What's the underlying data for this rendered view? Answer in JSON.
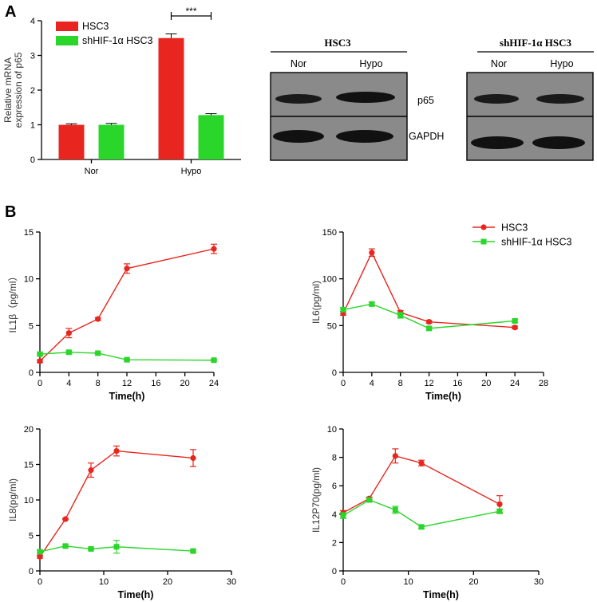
{
  "panel_labels": {
    "a": "A",
    "b": "B"
  },
  "colors": {
    "hsc3": "#e8261f",
    "shhif": "#2bd62b",
    "axis": "#000000",
    "blot_bg": "#8a8a8a"
  },
  "western_blot": {
    "left": {
      "title": "HSC3",
      "lanes": [
        "Nor",
        "Hypo"
      ]
    },
    "right": {
      "title": "shHIF-1α HSC3",
      "lanes": [
        "Nor",
        "Hypo"
      ]
    },
    "bands": [
      "p65",
      "GAPDH"
    ]
  },
  "chart_data": [
    {
      "id": "bar",
      "type": "bar",
      "categories": [
        "Nor",
        "Hypo"
      ],
      "ylabel": "Relative mRNA\nexpression of p65",
      "ylim": [
        0,
        4
      ],
      "yticks": [
        0,
        1,
        2,
        3,
        4
      ],
      "series": [
        {
          "name": "HSC3",
          "values": [
            1.0,
            3.5
          ],
          "errors": [
            0.03,
            0.12
          ]
        },
        {
          "name": "shHIF-1α  HSC3",
          "values": [
            1.0,
            1.28
          ],
          "errors": [
            0.04,
            0.04
          ]
        }
      ],
      "annotation": "***"
    },
    {
      "id": "il1b",
      "type": "line",
      "xlabel": "Time(h)",
      "ylabel": "IL1β（pg/ml）",
      "xlim": [
        0,
        24
      ],
      "xticks": [
        0,
        4,
        8,
        12,
        16,
        20,
        24
      ],
      "ylim": [
        0,
        15
      ],
      "yticks": [
        0,
        5,
        10,
        15
      ],
      "series": [
        {
          "name": "HSC3",
          "x": [
            0,
            4,
            8,
            12,
            24
          ],
          "y": [
            1.2,
            4.2,
            5.7,
            11.1,
            13.2
          ],
          "err": [
            0.15,
            0.5,
            0.15,
            0.5,
            0.5
          ]
        },
        {
          "name": "shHIF-1α  HSC3",
          "x": [
            0,
            4,
            8,
            12,
            24
          ],
          "y": [
            1.95,
            2.15,
            2.05,
            1.35,
            1.3
          ],
          "err": [
            0.1,
            0.15,
            0.1,
            0.1,
            0.1
          ]
        }
      ]
    },
    {
      "id": "il6",
      "type": "line",
      "xlabel": "Time(h)",
      "ylabel": "IL6(pg/ml)",
      "xlim": [
        0,
        28
      ],
      "xticks": [
        0,
        4,
        8,
        12,
        16,
        20,
        24,
        28
      ],
      "ylim": [
        0,
        150
      ],
      "yticks": [
        0,
        50,
        100,
        150
      ],
      "series": [
        {
          "name": "HSC3",
          "x": [
            0,
            4,
            8,
            12,
            24
          ],
          "y": [
            63,
            128,
            64,
            54,
            48
          ],
          "err": [
            2,
            4,
            2,
            1.5,
            1.5
          ]
        },
        {
          "name": "shHIF-1α  HSC3",
          "x": [
            0,
            4,
            8,
            12,
            24
          ],
          "y": [
            67,
            73,
            61,
            47,
            55
          ],
          "err": [
            2,
            2,
            3,
            1.5,
            1.5
          ]
        }
      ],
      "legend": {
        "position": "top-right",
        "items": [
          "HSC3",
          "shHIF-1α  HSC3"
        ]
      }
    },
    {
      "id": "il8",
      "type": "line",
      "xlabel": "Time(h)",
      "ylabel": "IL8(pg/ml)",
      "xlim": [
        0,
        30
      ],
      "xticks": [
        0,
        10,
        20,
        30
      ],
      "ylim": [
        0,
        20
      ],
      "yticks": [
        0,
        5,
        10,
        15,
        20
      ],
      "series": [
        {
          "name": "HSC3",
          "x": [
            0,
            4,
            8,
            12,
            24
          ],
          "y": [
            2.0,
            7.3,
            14.2,
            16.9,
            15.9
          ],
          "err": [
            0.2,
            0.1,
            1.0,
            0.7,
            1.2
          ]
        },
        {
          "name": "shHIF-1α  HSC3",
          "x": [
            0,
            4,
            8,
            12,
            24
          ],
          "y": [
            2.7,
            3.5,
            3.1,
            3.4,
            2.8
          ],
          "err": [
            0.2,
            0.15,
            0.15,
            0.9,
            0.15
          ]
        }
      ]
    },
    {
      "id": "il12",
      "type": "line",
      "xlabel": "Time(h)",
      "ylabel": "IL12P70(pg/ml)",
      "xlim": [
        0,
        30
      ],
      "xticks": [
        0,
        10,
        20,
        30
      ],
      "ylim": [
        0,
        10
      ],
      "yticks": [
        0,
        2,
        4,
        6,
        8,
        10
      ],
      "series": [
        {
          "name": "HSC3",
          "x": [
            0,
            4,
            8,
            12,
            24
          ],
          "y": [
            4.1,
            5.1,
            8.1,
            7.6,
            4.7
          ],
          "err": [
            0.15,
            0.1,
            0.5,
            0.2,
            0.6
          ]
        },
        {
          "name": "shHIF-1α  HSC3",
          "x": [
            0,
            4,
            8,
            12,
            24
          ],
          "y": [
            3.9,
            5.0,
            4.3,
            3.1,
            4.2
          ],
          "err": [
            0.2,
            0.15,
            0.25,
            0.1,
            0.15
          ]
        }
      ]
    }
  ]
}
